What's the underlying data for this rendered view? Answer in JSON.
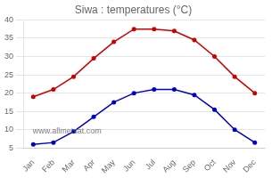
{
  "chart_data": {
    "type": "line",
    "title": "Siwa : temperatures (°C)",
    "categories": [
      "Jan",
      "Feb",
      "Mar",
      "Apr",
      "May",
      "Jun",
      "Jul",
      "Aug",
      "Sep",
      "Oct",
      "Nov",
      "Dec"
    ],
    "series": [
      {
        "color": "#cc0000",
        "values": [
          19,
          21,
          24.5,
          29.5,
          34,
          37.5,
          37.5,
          37,
          34.5,
          30,
          24.5,
          20
        ]
      },
      {
        "color": "#0000cc",
        "values": [
          6,
          6.5,
          9.5,
          13.5,
          17.5,
          20,
          21,
          21,
          19.5,
          15.5,
          10,
          6.5
        ]
      }
    ],
    "ylim": [
      5,
      40
    ],
    "yticks": [
      5,
      10,
      15,
      20,
      25,
      30,
      35,
      40
    ],
    "grid": "y",
    "marker": "circle",
    "annotation": "www.allmetsat.com"
  }
}
